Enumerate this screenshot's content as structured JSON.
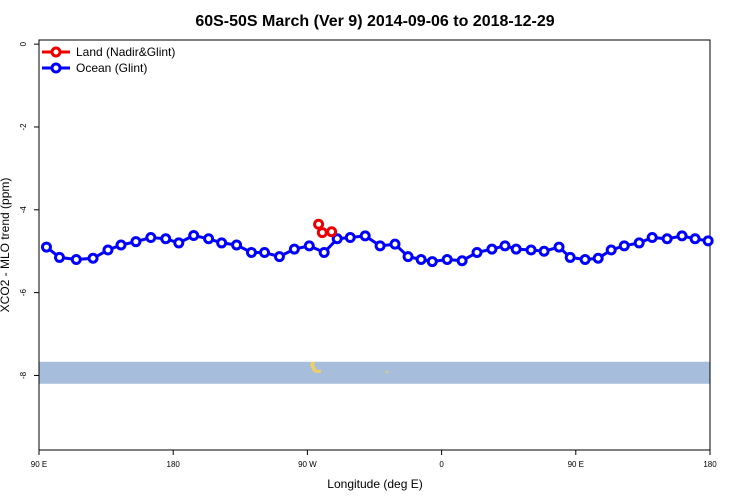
{
  "chart_data": {
    "type": "line",
    "title": "60S-50S March (Ver 9)   2014-09-06 to 2018-12-29",
    "xlabel": "Longitude (deg E)",
    "ylabel": "XCO2 - MLO trend (ppm)",
    "xlim": [
      90,
      450
    ],
    "ylim": [
      -9.8,
      0.1
    ],
    "x_ticks": [
      {
        "value": 90,
        "label": "90 E"
      },
      {
        "value": 162,
        "label": "180"
      },
      {
        "value": 234,
        "label": "90 W"
      },
      {
        "value": 306,
        "label": "0"
      },
      {
        "value": 378,
        "label": "90 E"
      },
      {
        "value": 450,
        "label": "180"
      }
    ],
    "y_ticks": [
      0,
      -2,
      -4,
      -6,
      -8
    ],
    "legend_position": "top-left",
    "series": [
      {
        "name": "Land (Nadir&Glint)",
        "color": "#ee0000",
        "x": [
          240,
          242,
          247
        ],
        "y": [
          -4.35,
          -4.55,
          -4.53
        ]
      },
      {
        "name": "Ocean (Glint)",
        "color": "#0000ff",
        "x": [
          94,
          101,
          110,
          119,
          127,
          134,
          142,
          150,
          158,
          165,
          173,
          181,
          188,
          196,
          204,
          211,
          219,
          227,
          235,
          243,
          250,
          257,
          265,
          273,
          281,
          288,
          295,
          301,
          309,
          317,
          325,
          333,
          340,
          346,
          354,
          361,
          369,
          375,
          383,
          390,
          397,
          404,
          412,
          419,
          427,
          435,
          442,
          449
        ],
        "y": [
          -4.9,
          -5.15,
          -5.2,
          -5.17,
          -4.97,
          -4.85,
          -4.77,
          -4.67,
          -4.7,
          -4.8,
          -4.62,
          -4.7,
          -4.8,
          -4.85,
          -5.03,
          -5.03,
          -5.13,
          -4.95,
          -4.87,
          -5.03,
          -4.7,
          -4.67,
          -4.63,
          -4.87,
          -4.83,
          -5.13,
          -5.2,
          -5.25,
          -5.2,
          -5.23,
          -5.03,
          -4.95,
          -4.87,
          -4.95,
          -4.97,
          -5.0,
          -4.9,
          -5.15,
          -5.2,
          -5.17,
          -4.97,
          -4.87,
          -4.8,
          -4.67,
          -4.7,
          -4.63,
          -4.7,
          -4.75
        ]
      }
    ],
    "map_band": {
      "y_range": [
        -8.2,
        -7.67
      ],
      "ocean_color": "#a6bddb",
      "land_color": "#f0d060"
    }
  }
}
